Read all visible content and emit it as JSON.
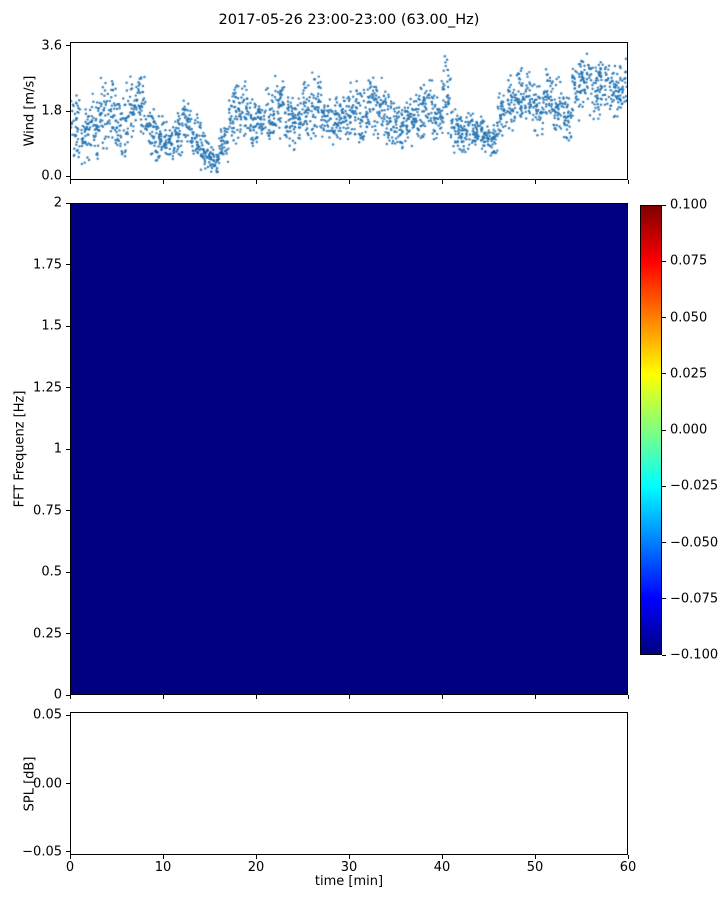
{
  "title": "2017-05-26 23:00-23:00 (63.00_Hz)",
  "chart_data": [
    {
      "type": "scatter",
      "name": "wind",
      "ylabel": "Wind [m/s]",
      "ylim": [
        0,
        3.6
      ],
      "xlim": [
        0,
        60
      ],
      "yticks": {
        "values": [
          0.0,
          1.8,
          3.6
        ],
        "labels": [
          "0.0",
          "1.8",
          "3.6"
        ]
      },
      "marker_color": "#2273b2",
      "points_per_minute": 40,
      "seed": 7,
      "x_minutes_envelope_lo": [
        0.3,
        0.2,
        0.4,
        0.5,
        0.6,
        0.4,
        0.8,
        0.9,
        0.5,
        0.3,
        0.3,
        0.4,
        0.5,
        0.4,
        0.1,
        0.0,
        0.2,
        0.8,
        1.0,
        0.8,
        0.7,
        0.8,
        1.0,
        0.8,
        0.7,
        0.9,
        1.0,
        0.8,
        0.7,
        0.8,
        0.9,
        0.8,
        1.0,
        0.9,
        0.7,
        0.6,
        0.7,
        0.9,
        1.0,
        0.8,
        1.0,
        0.6,
        0.5,
        0.6,
        0.5,
        0.4,
        0.8,
        1.2,
        1.5,
        1.3,
        1.0,
        1.4,
        1.0,
        0.9,
        1.5,
        1.8,
        1.5,
        1.6,
        1.4,
        1.5
      ],
      "x_minutes_envelope_hi": [
        2.3,
        2.0,
        2.4,
        2.9,
        2.7,
        2.2,
        2.9,
        3.0,
        2.3,
        1.8,
        1.6,
        2.0,
        2.4,
        2.0,
        1.2,
        0.9,
        1.5,
        2.6,
        2.9,
        2.4,
        2.2,
        2.6,
        3.0,
        2.4,
        2.3,
        2.7,
        3.0,
        2.5,
        2.3,
        2.5,
        2.7,
        2.5,
        3.1,
        2.9,
        2.4,
        2.2,
        2.3,
        2.6,
        2.8,
        2.5,
        3.5,
        2.0,
        1.8,
        1.9,
        1.7,
        1.5,
        2.4,
        2.9,
        3.2,
        3.0,
        2.6,
        3.1,
        2.8,
        2.4,
        3.3,
        3.6,
        3.2,
        3.4,
        3.2,
        3.3
      ]
    },
    {
      "type": "heatmap",
      "name": "fft-spectrogram",
      "ylabel": "FFT Frequenz [Hz]",
      "ylim": [
        0,
        2
      ],
      "xlim": [
        0,
        60
      ],
      "yticks": {
        "values": [
          0,
          0.25,
          0.5,
          0.75,
          1,
          1.25,
          1.5,
          1.75,
          2
        ],
        "labels": [
          "0",
          "0.25",
          "0.5",
          "0.75",
          "1",
          "1.25",
          "1.5",
          "1.75",
          "2"
        ]
      },
      "uniform_value": -0.1,
      "fill_color": "#000080",
      "colorbar": {
        "cmap": "jet",
        "vmin": -0.1,
        "vmax": 0.1,
        "ticks": {
          "values": [
            0.1,
            0.075,
            0.05,
            0.025,
            0,
            -0.025,
            -0.05,
            -0.075,
            -0.1
          ],
          "labels": [
            "0.100",
            "0.075",
            "0.050",
            "0.025",
            "0.000",
            "−0.025",
            "−0.050",
            "−0.075",
            "−0.100"
          ]
        },
        "gradient_stops_bottom_to_top": [
          [
            0,
            "#000080"
          ],
          [
            0.125,
            "#0000ff"
          ],
          [
            0.375,
            "#00ffff"
          ],
          [
            0.625,
            "#ffff00"
          ],
          [
            0.875,
            "#ff0000"
          ],
          [
            1,
            "#800000"
          ]
        ]
      }
    },
    {
      "type": "line",
      "name": "spl",
      "ylabel": "SPL [dB]",
      "ylim": [
        -0.05,
        0.05
      ],
      "xlim": [
        0,
        60
      ],
      "yticks": {
        "values": [
          0.05,
          0,
          -0.05
        ],
        "labels": [
          "0.05",
          "0.00",
          "−0.05"
        ]
      },
      "xticks": {
        "values": [
          0,
          10,
          20,
          30,
          40,
          50,
          60
        ],
        "labels": [
          "0",
          "10",
          "20",
          "30",
          "40",
          "50",
          "60"
        ]
      },
      "xlabel": "time [min]",
      "series": []
    }
  ]
}
